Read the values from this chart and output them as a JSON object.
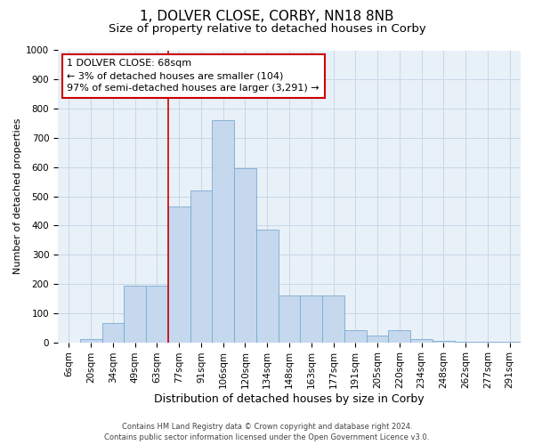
{
  "title": "1, DOLVER CLOSE, CORBY, NN18 8NB",
  "subtitle": "Size of property relative to detached houses in Corby",
  "xlabel": "Distribution of detached houses by size in Corby",
  "ylabel": "Number of detached properties",
  "footer_line1": "Contains HM Land Registry data © Crown copyright and database right 2024.",
  "footer_line2": "Contains public sector information licensed under the Open Government Licence v3.0.",
  "categories": [
    "6sqm",
    "20sqm",
    "34sqm",
    "49sqm",
    "63sqm",
    "77sqm",
    "91sqm",
    "106sqm",
    "120sqm",
    "134sqm",
    "148sqm",
    "163sqm",
    "177sqm",
    "191sqm",
    "205sqm",
    "220sqm",
    "234sqm",
    "248sqm",
    "262sqm",
    "277sqm",
    "291sqm"
  ],
  "bar_values": [
    0,
    10,
    65,
    195,
    195,
    465,
    520,
    760,
    595,
    385,
    160,
    160,
    160,
    40,
    22,
    42,
    10,
    5,
    2,
    1,
    1
  ],
  "bar_color": "#c5d8ee",
  "bar_edge_color": "#7aaad0",
  "grid_color": "#c8d8e8",
  "bg_color": "#e8f0f8",
  "annotation_line1": "1 DOLVER CLOSE: 68sqm",
  "annotation_line2": "← 3% of detached houses are smaller (104)",
  "annotation_line3": "97% of semi-detached houses are larger (3,291) →",
  "annotation_box_facecolor": "#ffffff",
  "annotation_box_edgecolor": "#cc0000",
  "property_line_color": "#cc0000",
  "property_line_x": 4.5,
  "ylim": [
    0,
    1000
  ],
  "yticks": [
    0,
    100,
    200,
    300,
    400,
    500,
    600,
    700,
    800,
    900,
    1000
  ],
  "title_fontsize": 11,
  "subtitle_fontsize": 9.5,
  "xlabel_fontsize": 9,
  "ylabel_fontsize": 8,
  "tick_fontsize": 7.5,
  "annotation_fontsize": 8,
  "footer_fontsize": 6
}
